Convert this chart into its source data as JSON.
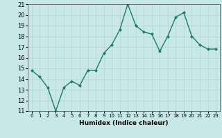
{
  "x": [
    0,
    1,
    2,
    3,
    4,
    5,
    6,
    7,
    8,
    9,
    10,
    11,
    12,
    13,
    14,
    15,
    16,
    17,
    18,
    19,
    20,
    21,
    22,
    23
  ],
  "y": [
    14.8,
    14.2,
    13.2,
    11.0,
    13.2,
    13.8,
    13.4,
    14.8,
    14.8,
    16.4,
    17.2,
    18.6,
    21.0,
    19.0,
    18.4,
    18.2,
    16.6,
    18.0,
    19.8,
    20.2,
    18.0,
    17.2,
    16.8,
    16.8
  ],
  "xlabel": "Humidex (Indice chaleur)",
  "ylim": [
    11,
    21
  ],
  "xlim": [
    -0.5,
    23.5
  ],
  "yticks": [
    11,
    12,
    13,
    14,
    15,
    16,
    17,
    18,
    19,
    20,
    21
  ],
  "xticks": [
    0,
    1,
    2,
    3,
    4,
    5,
    6,
    7,
    8,
    9,
    10,
    11,
    12,
    13,
    14,
    15,
    16,
    17,
    18,
    19,
    20,
    21,
    22,
    23
  ],
  "line_color": "#1a7a6e",
  "marker_color": "#1a7a6e",
  "bg_color": "#c8e8e8",
  "grid_color": "#b0d4d4",
  "font_color": "#000000",
  "xlabel_fontsize": 6.5,
  "tick_fontsize": 5.5,
  "linewidth": 1.0,
  "markersize": 2.2
}
